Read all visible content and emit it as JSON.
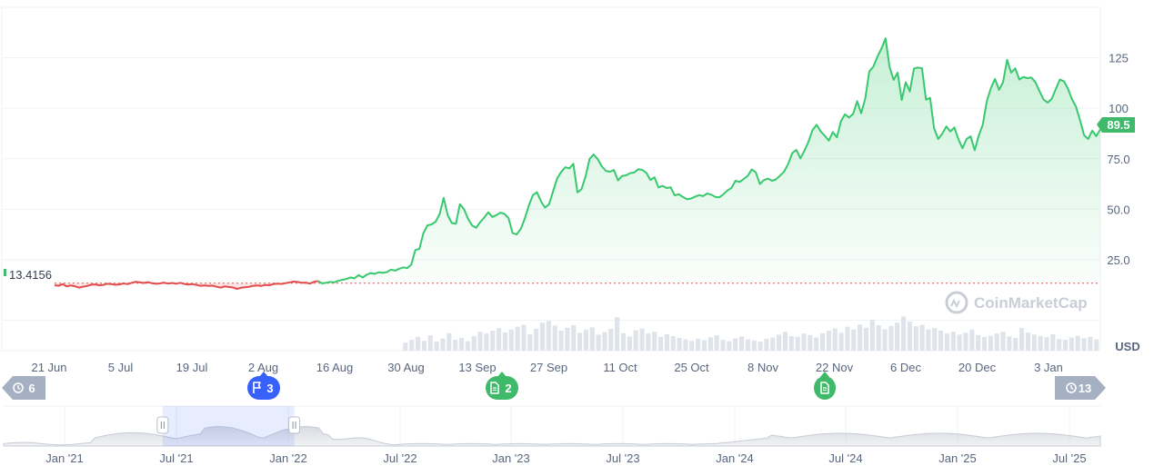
{
  "chart_data": {
    "type": "area",
    "currency_label": "USD",
    "current_price_label": "89.5",
    "baseline_label": "13.4156",
    "watermark": "CoinMarketCap",
    "y_ticks": [
      "25.0",
      "50.0",
      "75.0",
      "100",
      "125"
    ],
    "ylim": [
      -20,
      150
    ],
    "x_ticks": [
      "21 Jun",
      "5 Jul",
      "19 Jul",
      "2 Aug",
      "16 Aug",
      "30 Aug",
      "13 Sep",
      "27 Sep",
      "11 Oct",
      "25 Oct",
      "8 Nov",
      "22 Nov",
      "6 Dec",
      "20 Dec",
      "3 Jan"
    ],
    "series": [
      {
        "values": [
          12.4,
          12.1,
          12.9,
          11.8,
          12.3,
          11.9,
          11.2,
          11.6,
          12.0,
          12.6,
          12.8,
          12.4,
          12.5,
          13.1,
          12.9,
          12.6,
          12.8,
          13.3,
          12.9,
          13.6,
          14.1,
          13.8,
          13.5,
          13.9,
          13.4,
          13.1,
          13.3,
          13.7,
          13.2,
          13.5,
          13.1,
          13.6,
          13.0,
          12.7,
          12.9,
          12.5,
          12.1,
          12.3,
          12.0,
          12.2,
          11.6,
          11.2,
          11.8,
          11.5,
          11.3,
          10.6,
          11.1,
          11.4,
          11.6,
          12.1,
          12.3,
          12.0,
          12.5,
          12.4,
          12.9,
          13.2,
          13.0,
          13.4,
          13.8,
          14.2,
          14.0,
          13.6,
          13.7,
          13.2,
          14.1,
          14.5,
          13.3,
          13.6,
          14.0,
          13.8,
          14.6,
          15.1,
          15.5,
          16.2,
          15.8,
          17.4,
          16.2,
          17.6,
          18.4,
          18.0,
          18.8,
          18.5,
          18.9,
          20.1,
          19.6,
          20.5,
          21.2,
          20.9,
          22.5,
          29.8,
          30.4,
          38.2,
          42.0,
          42.5,
          43.8,
          47.5,
          55.6,
          47.0,
          43.2,
          42.8,
          52.5,
          50.1,
          45.3,
          42.0,
          40.8,
          43.6,
          45.9,
          48.5,
          46.2,
          47.1,
          48.3,
          47.7,
          45.6,
          38.2,
          37.5,
          40.2,
          45.4,
          51.8,
          57.0,
          58.5,
          54.0,
          50.8,
          52.5,
          59.0,
          65.3,
          68.5,
          70.8,
          70.2,
          72.5,
          58.3,
          60.0,
          66.2,
          75.0,
          77.1,
          74.8,
          71.3,
          69.0,
          68.6,
          69.4,
          64.3,
          66.5,
          66.8,
          67.9,
          68.2,
          69.8,
          69.5,
          68.0,
          64.5,
          65.8,
          60.8,
          61.6,
          60.5,
          60.8,
          56.9,
          57.4,
          56.1,
          55.0,
          55.3,
          56.2,
          57.0,
          56.5,
          57.8,
          57.2,
          56.1,
          55.9,
          57.4,
          59.3,
          60.6,
          64.1,
          63.5,
          65.0,
          66.5,
          69.7,
          68.3,
          62.5,
          64.4,
          65.2,
          64.1,
          64.8,
          66.7,
          68.7,
          72.5,
          77.8,
          79.4,
          75.2,
          79.0,
          83.5,
          89.2,
          91.8,
          88.6,
          86.4,
          84.0,
          88.2,
          85.6,
          93.5,
          97.0,
          95.4,
          97.2,
          103.5,
          97.5,
          104.8,
          118.2,
          120.6,
          125.5,
          129.6,
          134.6,
          120.5,
          114.0,
          117.6,
          104.1,
          112.9,
          108.3,
          119.6,
          120.2,
          119.8,
          104.2,
          105.1,
          90.0,
          84.8,
          87.4,
          91.0,
          88.5,
          90.5,
          84.6,
          80.2,
          84.8,
          86.1,
          79.2,
          86.5,
          91.8,
          103.6,
          110.0,
          114.5,
          109.1,
          112.9,
          124.0,
          117.6,
          119.8,
          114.2,
          115.5,
          114.9,
          115.2,
          112.8,
          108.5,
          104.3,
          102.8,
          104.6,
          109.5,
          114.2,
          113.4,
          109.8,
          104.5,
          100.7,
          94.0,
          86.6,
          84.8,
          88.9,
          86.2,
          89.5
        ]
      }
    ],
    "volume": [
      0.22,
      0.3,
      0.38,
      0.27,
      0.42,
      0.25,
      0.33,
      0.48,
      0.3,
      0.35,
      0.26,
      0.4,
      0.52,
      0.47,
      0.55,
      0.62,
      0.5,
      0.58,
      0.66,
      0.71,
      0.45,
      0.6,
      0.77,
      0.82,
      0.69,
      0.55,
      0.63,
      0.7,
      0.49,
      0.58,
      0.64,
      0.44,
      0.51,
      0.6,
      0.92,
      0.48,
      0.39,
      0.56,
      0.61,
      0.47,
      0.52,
      0.38,
      0.45,
      0.4,
      0.35,
      0.31,
      0.27,
      0.33,
      0.29,
      0.37,
      0.42,
      0.3,
      0.26,
      0.34,
      0.39,
      0.31,
      0.28,
      0.25,
      0.33,
      0.36,
      0.44,
      0.52,
      0.4,
      0.38,
      0.47,
      0.43,
      0.36,
      0.48,
      0.55,
      0.61,
      0.49,
      0.66,
      0.58,
      0.72,
      0.63,
      0.85,
      0.7,
      0.59,
      0.68,
      0.77,
      0.94,
      0.8,
      0.67,
      0.71,
      0.58,
      0.62,
      0.55,
      0.47,
      0.52,
      0.44,
      0.49,
      0.58,
      0.43,
      0.38,
      0.41,
      0.47,
      0.52,
      0.39,
      0.35,
      0.62,
      0.5,
      0.44,
      0.4,
      0.37,
      0.45,
      0.32,
      0.3,
      0.36,
      0.41,
      0.34,
      0.38,
      0.31
    ],
    "volume_start_value_index": 86,
    "brush_range": [
      0.145,
      0.265
    ],
    "navigator_ticks": [
      "Jan '21",
      "Jul '21",
      "Jan '22",
      "Jul '22",
      "Jan '23",
      "Jul '23",
      "Jan '24",
      "Jul '24",
      "Jan '25",
      "Jul '25"
    ],
    "badges": [
      {
        "count": "6",
        "icon": "history-icon",
        "color": "#a6b0c3"
      },
      {
        "count": "3",
        "icon": "flag-icon",
        "color": "#3861fb"
      },
      {
        "count": "2",
        "icon": "document-icon",
        "color": "#3fb96a"
      },
      {
        "count": "",
        "icon": "document-icon",
        "color": "#3fb96a"
      },
      {
        "count": "13",
        "icon": "clock-icon",
        "color": "#a6b0c3"
      }
    ],
    "colors": {
      "up": "#38c96e",
      "down": "#e24c4c",
      "baseline": "#e24c4c",
      "price_tag": "#3fb96a",
      "volume": "#dfe3ea",
      "brush": "#3861fb"
    }
  }
}
